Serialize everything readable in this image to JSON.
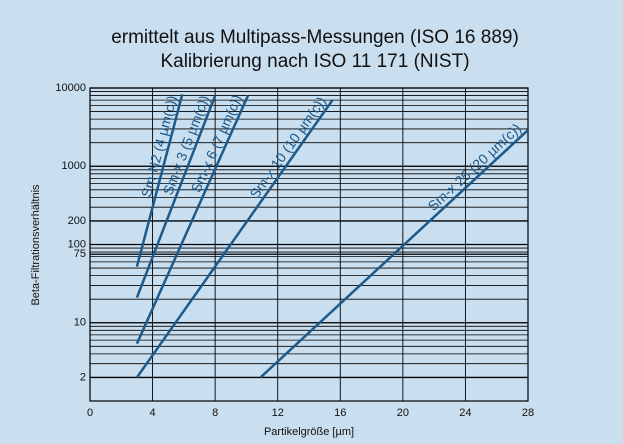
{
  "chart_data": {
    "type": "line",
    "title": [
      "ermittelt aus Multipass-Messungen (ISO 16 889)",
      "Kalibrierung nach ISO 11 171 (NIST)"
    ],
    "x_label": "Partikelgröße [µm]",
    "y_label": "Beta-Filtrationsverhältnis",
    "log_y": true,
    "grid": true,
    "xlim": [
      0,
      28
    ],
    "xticks": [
      0,
      4,
      8,
      12,
      16,
      20,
      24,
      28
    ],
    "ylim": [
      1,
      10000
    ],
    "yticks": [
      2,
      10,
      75,
      100,
      200,
      1000,
      10000
    ],
    "y_minor_ticks": [
      1,
      2,
      3,
      4,
      5,
      6,
      7,
      8,
      9,
      10,
      20,
      30,
      40,
      50,
      60,
      70,
      80,
      90,
      100,
      200,
      300,
      400,
      500,
      600,
      700,
      800,
      900,
      1000,
      2000,
      3000,
      4000,
      5000,
      6000,
      7000,
      8000,
      9000,
      10000
    ],
    "series": [
      {
        "name": "Sm-N2 (4 µm(c))",
        "color": "#1d5a8c",
        "x": [
          3,
          5.9
        ],
        "values": [
          52,
          8300
        ]
      },
      {
        "name": "Sm-x 3 (5 µm(c))",
        "color": "#1d5a8c",
        "x": [
          3,
          8.0
        ],
        "values": [
          21,
          8000
        ]
      },
      {
        "name": "Sm-x 6 (7 µm(c))",
        "color": "#1d5a8c",
        "x": [
          3,
          10.1
        ],
        "values": [
          5.4,
          8000
        ]
      },
      {
        "name": "Sm-x 10 (10 µm(c))",
        "color": "#1d5a8c",
        "x": [
          3,
          15.5
        ],
        "values": [
          2,
          7000
        ]
      },
      {
        "name": "Sm-x 25 (20 µm(c))",
        "color": "#1d5a8c",
        "x": [
          10.9,
          28
        ],
        "values": [
          2,
          2900
        ]
      }
    ]
  }
}
